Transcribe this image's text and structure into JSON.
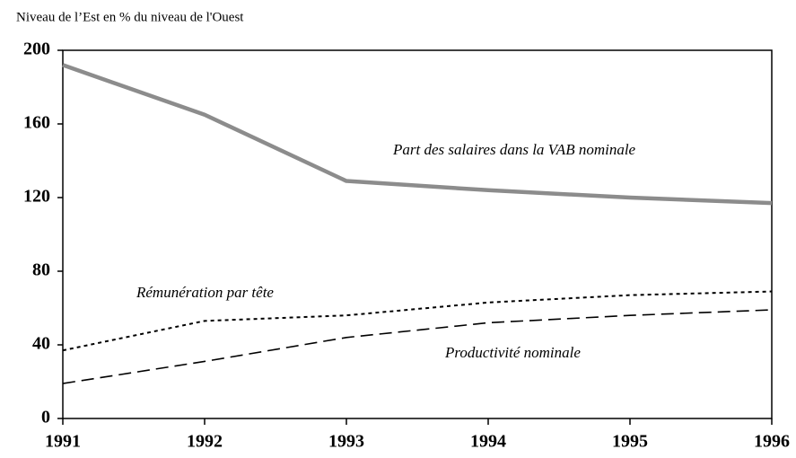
{
  "chart_data": {
    "type": "line",
    "ylabel": "Niveau de l’Est en % du niveau de l'Ouest",
    "x": [
      1991,
      1992,
      1993,
      1994,
      1995,
      1996
    ],
    "series": [
      {
        "name": "Part des salaires dans la VAB nominale",
        "color": "#8c8c8c",
        "values": [
          192,
          165,
          129,
          124,
          120,
          117
        ]
      },
      {
        "name": "Rémunération par tête",
        "color": "#000000",
        "values": [
          37,
          53,
          56,
          63,
          67,
          69
        ]
      },
      {
        "name": "Productivité nominale",
        "color": "#000000",
        "values": [
          19,
          31,
          44,
          52,
          56,
          59
        ]
      }
    ],
    "xlim": [
      1991,
      1996
    ],
    "xticks": [
      1991,
      1992,
      1993,
      1994,
      1995,
      1996
    ],
    "ylim": [
      0,
      200
    ],
    "yticks": [
      0,
      40,
      80,
      120,
      160,
      200
    ]
  }
}
